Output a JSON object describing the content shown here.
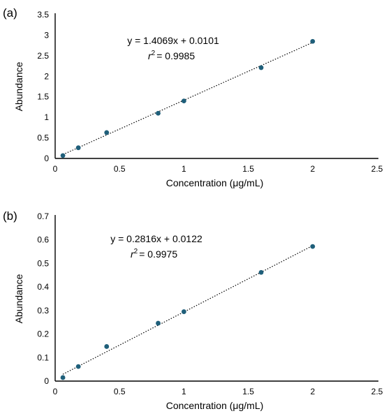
{
  "chart_data": [
    {
      "type": "scatter",
      "panel_label": "(a)",
      "xlabel": "Concentration (μg/mL)",
      "ylabel": "Abundance",
      "xlim": [
        0,
        2.5
      ],
      "ylim": [
        0,
        3.5
      ],
      "x_ticks": [
        "0",
        "0.5",
        "1",
        "1.5",
        "2",
        "2.5"
      ],
      "y_ticks": [
        "0",
        "0.5",
        "1",
        "1.5",
        "2",
        "2.5",
        "3",
        "3.5"
      ],
      "x_tick_values": [
        0,
        0.5,
        1,
        1.5,
        2,
        2.5
      ],
      "y_tick_values": [
        0,
        0.5,
        1,
        1.5,
        2,
        2.5,
        3,
        3.5
      ],
      "grid": false,
      "series": [
        {
          "x": [
            0.06,
            0.18,
            0.4,
            0.8,
            1.0,
            1.6,
            2.0
          ],
          "y": [
            0.07,
            0.26,
            0.63,
            1.1,
            1.4,
            2.21,
            2.85
          ],
          "color": "#1f5f7a"
        }
      ],
      "trendline": {
        "slope": 1.4069,
        "intercept": 0.0101,
        "x_range": [
          0.06,
          2.0
        ],
        "style": "dotted"
      },
      "equation_text": "y = 1.4069x + 0.0101",
      "r2_text": "= 0.9985"
    },
    {
      "type": "scatter",
      "panel_label": "(b)",
      "xlabel": "Concentration (μg/mL)",
      "ylabel": "Abundance",
      "xlim": [
        0,
        2.5
      ],
      "ylim": [
        0,
        0.7
      ],
      "x_ticks": [
        "0",
        "0.5",
        "1",
        "1.5",
        "2",
        "2.5"
      ],
      "y_ticks": [
        "0",
        "0.1",
        "0.2",
        "0.3",
        "0.4",
        "0.5",
        "0.6",
        "0.7"
      ],
      "x_tick_values": [
        0,
        0.5,
        1,
        1.5,
        2,
        2.5
      ],
      "y_tick_values": [
        0,
        0.1,
        0.2,
        0.3,
        0.4,
        0.5,
        0.6,
        0.7
      ],
      "grid": false,
      "series": [
        {
          "x": [
            0.06,
            0.18,
            0.4,
            0.8,
            1.0,
            1.6,
            2.0
          ],
          "y": [
            0.015,
            0.062,
            0.147,
            0.246,
            0.295,
            0.462,
            0.572
          ],
          "color": "#1f5f7a"
        }
      ],
      "trendline": {
        "slope": 0.2816,
        "intercept": 0.0122,
        "x_range": [
          0.06,
          2.0
        ],
        "style": "dotted"
      },
      "equation_text": "y = 0.2816x + 0.0122",
      "r2_text": "= 0.9975"
    }
  ]
}
